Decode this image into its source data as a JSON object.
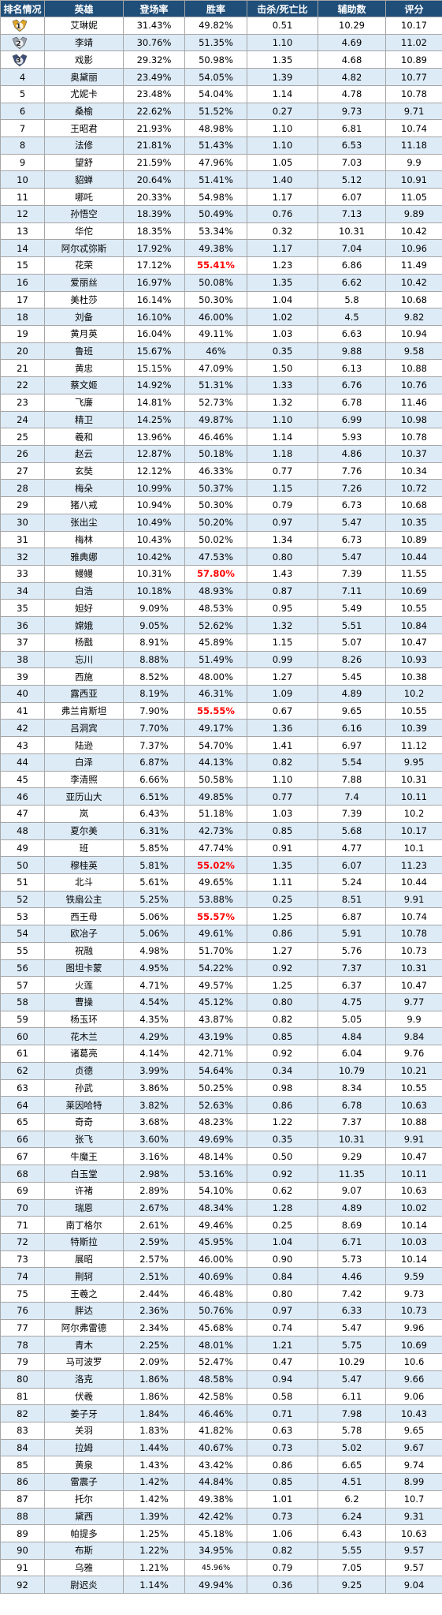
{
  "headers": [
    "排名情况",
    "英雄",
    "登场率",
    "胜率",
    "击杀/死亡比",
    "辅助数",
    "评分"
  ],
  "colors": {
    "header_bg": "#1f4e79",
    "stripe": "#ddebf7",
    "highlight": "#ff0000",
    "gold": "#e0a526",
    "silver": "#9aa3ad"
  },
  "rows": [
    {
      "rank": "1",
      "hero": "艾琳妮",
      "appear": "31.43%",
      "win": "49.82%",
      "kd": "0.51",
      "assist": "10.29",
      "score": "10.17",
      "medal": "gold"
    },
    {
      "rank": "2",
      "hero": "李靖",
      "appear": "30.76%",
      "win": "51.35%",
      "kd": "1.10",
      "assist": "4.69",
      "score": "11.02",
      "medal": "silver"
    },
    {
      "rank": "3",
      "hero": "戏影",
      "appear": "29.32%",
      "win": "50.98%",
      "kd": "1.35",
      "assist": "4.68",
      "score": "10.89",
      "medal": "bronze"
    },
    {
      "rank": "4",
      "hero": "奥黛丽",
      "appear": "23.49%",
      "win": "54.05%",
      "kd": "1.39",
      "assist": "4.82",
      "score": "10.77"
    },
    {
      "rank": "5",
      "hero": "尤妮卡",
      "appear": "23.48%",
      "win": "54.04%",
      "kd": "1.14",
      "assist": "4.78",
      "score": "10.78"
    },
    {
      "rank": "6",
      "hero": "桑榆",
      "appear": "22.62%",
      "win": "51.52%",
      "kd": "0.27",
      "assist": "9.73",
      "score": "9.71"
    },
    {
      "rank": "7",
      "hero": "王昭君",
      "appear": "21.93%",
      "win": "48.98%",
      "kd": "1.10",
      "assist": "6.81",
      "score": "10.74"
    },
    {
      "rank": "8",
      "hero": "法修",
      "appear": "21.81%",
      "win": "51.43%",
      "kd": "1.10",
      "assist": "6.53",
      "score": "11.18"
    },
    {
      "rank": "9",
      "hero": "望舒",
      "appear": "21.59%",
      "win": "47.96%",
      "kd": "1.05",
      "assist": "7.03",
      "score": "9.9"
    },
    {
      "rank": "10",
      "hero": "貂蝉",
      "appear": "20.64%",
      "win": "51.41%",
      "kd": "1.40",
      "assist": "5.12",
      "score": "10.91"
    },
    {
      "rank": "11",
      "hero": "哪吒",
      "appear": "20.33%",
      "win": "54.98%",
      "kd": "1.17",
      "assist": "6.07",
      "score": "11.05"
    },
    {
      "rank": "12",
      "hero": "孙悟空",
      "appear": "18.39%",
      "win": "50.49%",
      "kd": "0.76",
      "assist": "7.13",
      "score": "9.89"
    },
    {
      "rank": "13",
      "hero": "华佗",
      "appear": "18.35%",
      "win": "53.34%",
      "kd": "0.32",
      "assist": "10.31",
      "score": "10.42"
    },
    {
      "rank": "14",
      "hero": "阿尔忒弥斯",
      "appear": "17.92%",
      "win": "49.38%",
      "kd": "1.17",
      "assist": "7.04",
      "score": "10.96"
    },
    {
      "rank": "15",
      "hero": "花荣",
      "appear": "17.12%",
      "win": "55.41%",
      "kd": "1.23",
      "assist": "6.86",
      "score": "11.49",
      "hl": true
    },
    {
      "rank": "16",
      "hero": "爱丽丝",
      "appear": "16.97%",
      "win": "50.08%",
      "kd": "1.35",
      "assist": "6.62",
      "score": "10.42"
    },
    {
      "rank": "17",
      "hero": "美杜莎",
      "appear": "16.14%",
      "win": "50.30%",
      "kd": "1.04",
      "assist": "5.8",
      "score": "10.68"
    },
    {
      "rank": "18",
      "hero": "刘备",
      "appear": "16.10%",
      "win": "46.00%",
      "kd": "1.02",
      "assist": "4.5",
      "score": "9.82"
    },
    {
      "rank": "19",
      "hero": "黄月英",
      "appear": "16.04%",
      "win": "49.11%",
      "kd": "1.03",
      "assist": "6.63",
      "score": "10.94"
    },
    {
      "rank": "20",
      "hero": "鲁班",
      "appear": "15.67%",
      "win": "46%",
      "kd": "0.35",
      "assist": "9.88",
      "score": "9.58"
    },
    {
      "rank": "21",
      "hero": "黄忠",
      "appear": "15.15%",
      "win": "47.09%",
      "kd": "1.50",
      "assist": "6.13",
      "score": "10.88"
    },
    {
      "rank": "22",
      "hero": "蔡文姬",
      "appear": "14.92%",
      "win": "51.31%",
      "kd": "1.33",
      "assist": "6.76",
      "score": "10.76"
    },
    {
      "rank": "23",
      "hero": "飞廉",
      "appear": "14.81%",
      "win": "52.73%",
      "kd": "1.32",
      "assist": "6.78",
      "score": "11.46"
    },
    {
      "rank": "24",
      "hero": "精卫",
      "appear": "14.25%",
      "win": "49.87%",
      "kd": "1.10",
      "assist": "6.99",
      "score": "10.98"
    },
    {
      "rank": "25",
      "hero": "羲和",
      "appear": "13.96%",
      "win": "46.46%",
      "kd": "1.14",
      "assist": "5.93",
      "score": "10.78"
    },
    {
      "rank": "26",
      "hero": "赵云",
      "appear": "12.87%",
      "win": "50.18%",
      "kd": "1.18",
      "assist": "4.86",
      "score": "10.37"
    },
    {
      "rank": "27",
      "hero": "玄奘",
      "appear": "12.12%",
      "win": "46.33%",
      "kd": "0.77",
      "assist": "7.76",
      "score": "10.34"
    },
    {
      "rank": "28",
      "hero": "梅朵",
      "appear": "10.99%",
      "win": "50.37%",
      "kd": "1.15",
      "assist": "7.26",
      "score": "10.72"
    },
    {
      "rank": "29",
      "hero": "猪八戒",
      "appear": "10.94%",
      "win": "50.30%",
      "kd": "0.79",
      "assist": "6.73",
      "score": "10.68"
    },
    {
      "rank": "30",
      "hero": "张出尘",
      "appear": "10.49%",
      "win": "50.20%",
      "kd": "0.97",
      "assist": "5.47",
      "score": "10.35"
    },
    {
      "rank": "31",
      "hero": "梅林",
      "appear": "10.43%",
      "win": "50.02%",
      "kd": "1.34",
      "assist": "6.73",
      "score": "10.89"
    },
    {
      "rank": "32",
      "hero": "雅典娜",
      "appear": "10.42%",
      "win": "47.53%",
      "kd": "0.80",
      "assist": "5.47",
      "score": "10.44"
    },
    {
      "rank": "33",
      "hero": "鳗鳗",
      "appear": "10.31%",
      "win": "57.80%",
      "kd": "1.43",
      "assist": "7.39",
      "score": "11.55",
      "hl": true
    },
    {
      "rank": "34",
      "hero": "白浩",
      "appear": "10.18%",
      "win": "48.93%",
      "kd": "0.87",
      "assist": "7.11",
      "score": "10.69"
    },
    {
      "rank": "35",
      "hero": "妲好",
      "appear": "9.09%",
      "win": "48.53%",
      "kd": "0.95",
      "assist": "5.49",
      "score": "10.55"
    },
    {
      "rank": "36",
      "hero": "嫦娥",
      "appear": "9.05%",
      "win": "52.62%",
      "kd": "1.32",
      "assist": "5.51",
      "score": "10.84"
    },
    {
      "rank": "37",
      "hero": "杨戬",
      "appear": "8.91%",
      "win": "45.89%",
      "kd": "1.15",
      "assist": "5.07",
      "score": "10.47"
    },
    {
      "rank": "38",
      "hero": "忘川",
      "appear": "8.88%",
      "win": "51.49%",
      "kd": "0.99",
      "assist": "8.26",
      "score": "10.93"
    },
    {
      "rank": "39",
      "hero": "西施",
      "appear": "8.52%",
      "win": "48.00%",
      "kd": "1.27",
      "assist": "5.45",
      "score": "10.38"
    },
    {
      "rank": "40",
      "hero": "露西亚",
      "appear": "8.19%",
      "win": "46.31%",
      "kd": "1.09",
      "assist": "4.89",
      "score": "10.2"
    },
    {
      "rank": "41",
      "hero": "弗兰肯斯坦",
      "appear": "7.90%",
      "win": "55.55%",
      "kd": "0.67",
      "assist": "9.65",
      "score": "10.55",
      "hl": true
    },
    {
      "rank": "42",
      "hero": "吕洞宾",
      "appear": "7.70%",
      "win": "49.17%",
      "kd": "1.36",
      "assist": "6.16",
      "score": "10.39"
    },
    {
      "rank": "43",
      "hero": "陆逊",
      "appear": "7.37%",
      "win": "54.70%",
      "kd": "1.41",
      "assist": "6.97",
      "score": "11.12"
    },
    {
      "rank": "44",
      "hero": "白泽",
      "appear": "6.87%",
      "win": "44.13%",
      "kd": "0.82",
      "assist": "5.54",
      "score": "9.95"
    },
    {
      "rank": "45",
      "hero": "李清照",
      "appear": "6.66%",
      "win": "50.58%",
      "kd": "1.10",
      "assist": "7.88",
      "score": "10.31"
    },
    {
      "rank": "46",
      "hero": "亚历山大",
      "appear": "6.51%",
      "win": "49.85%",
      "kd": "0.77",
      "assist": "7.4",
      "score": "10.11"
    },
    {
      "rank": "47",
      "hero": "岚",
      "appear": "6.43%",
      "win": "51.18%",
      "kd": "1.03",
      "assist": "7.39",
      "score": "10.2"
    },
    {
      "rank": "48",
      "hero": "夏尔美",
      "appear": "6.31%",
      "win": "42.73%",
      "kd": "0.85",
      "assist": "5.68",
      "score": "10.17"
    },
    {
      "rank": "49",
      "hero": "班",
      "appear": "5.85%",
      "win": "47.74%",
      "kd": "0.91",
      "assist": "4.77",
      "score": "10.1"
    },
    {
      "rank": "50",
      "hero": "穆桂英",
      "appear": "5.81%",
      "win": "55.02%",
      "kd": "1.35",
      "assist": "6.07",
      "score": "11.23",
      "hl": true
    },
    {
      "rank": "51",
      "hero": "北斗",
      "appear": "5.61%",
      "win": "49.65%",
      "kd": "1.11",
      "assist": "5.24",
      "score": "10.44"
    },
    {
      "rank": "52",
      "hero": "铁扇公主",
      "appear": "5.25%",
      "win": "53.88%",
      "kd": "0.25",
      "assist": "8.51",
      "score": "9.91"
    },
    {
      "rank": "53",
      "hero": "西王母",
      "appear": "5.06%",
      "win": "55.57%",
      "kd": "1.25",
      "assist": "6.87",
      "score": "10.74",
      "hl": true
    },
    {
      "rank": "54",
      "hero": "欧冶子",
      "appear": "5.06%",
      "win": "49.61%",
      "kd": "0.86",
      "assist": "5.91",
      "score": "10.78"
    },
    {
      "rank": "55",
      "hero": "祝融",
      "appear": "4.98%",
      "win": "51.70%",
      "kd": "1.27",
      "assist": "5.76",
      "score": "10.73"
    },
    {
      "rank": "56",
      "hero": "图坦卡蒙",
      "appear": "4.95%",
      "win": "54.22%",
      "kd": "0.92",
      "assist": "7.37",
      "score": "10.31"
    },
    {
      "rank": "57",
      "hero": "火莲",
      "appear": "4.71%",
      "win": "49.57%",
      "kd": "1.25",
      "assist": "6.37",
      "score": "10.47"
    },
    {
      "rank": "58",
      "hero": "曹操",
      "appear": "4.54%",
      "win": "45.12%",
      "kd": "0.80",
      "assist": "4.75",
      "score": "9.77"
    },
    {
      "rank": "59",
      "hero": "杨玉环",
      "appear": "4.35%",
      "win": "43.87%",
      "kd": "0.82",
      "assist": "5.05",
      "score": "9.9"
    },
    {
      "rank": "60",
      "hero": "花木兰",
      "appear": "4.29%",
      "win": "43.19%",
      "kd": "0.85",
      "assist": "4.84",
      "score": "9.84"
    },
    {
      "rank": "61",
      "hero": "诸葛亮",
      "appear": "4.14%",
      "win": "42.71%",
      "kd": "0.92",
      "assist": "6.04",
      "score": "9.76"
    },
    {
      "rank": "62",
      "hero": "贞德",
      "appear": "3.99%",
      "win": "54.64%",
      "kd": "0.34",
      "assist": "10.79",
      "score": "10.21"
    },
    {
      "rank": "63",
      "hero": "孙武",
      "appear": "3.86%",
      "win": "50.25%",
      "kd": "0.98",
      "assist": "8.34",
      "score": "10.55"
    },
    {
      "rank": "64",
      "hero": "莱因哈特",
      "appear": "3.82%",
      "win": "52.63%",
      "kd": "0.86",
      "assist": "6.78",
      "score": "10.63"
    },
    {
      "rank": "65",
      "hero": "奇奇",
      "appear": "3.68%",
      "win": "48.23%",
      "kd": "1.22",
      "assist": "7.37",
      "score": "10.88"
    },
    {
      "rank": "66",
      "hero": "张飞",
      "appear": "3.60%",
      "win": "49.69%",
      "kd": "0.35",
      "assist": "10.31",
      "score": "9.91"
    },
    {
      "rank": "67",
      "hero": "牛魔王",
      "appear": "3.16%",
      "win": "48.14%",
      "kd": "0.50",
      "assist": "9.29",
      "score": "10.47"
    },
    {
      "rank": "68",
      "hero": "白玉堂",
      "appear": "2.98%",
      "win": "53.16%",
      "kd": "0.92",
      "assist": "11.35",
      "score": "10.11"
    },
    {
      "rank": "69",
      "hero": "许褚",
      "appear": "2.89%",
      "win": "54.10%",
      "kd": "0.62",
      "assist": "9.07",
      "score": "10.63"
    },
    {
      "rank": "70",
      "hero": "瑞恩",
      "appear": "2.67%",
      "win": "48.34%",
      "kd": "1.28",
      "assist": "4.89",
      "score": "10.02"
    },
    {
      "rank": "71",
      "hero": "南丁格尔",
      "appear": "2.61%",
      "win": "49.46%",
      "kd": "0.25",
      "assist": "8.69",
      "score": "10.14"
    },
    {
      "rank": "72",
      "hero": "特斯拉",
      "appear": "2.59%",
      "win": "45.95%",
      "kd": "1.04",
      "assist": "6.71",
      "score": "10.03"
    },
    {
      "rank": "73",
      "hero": "展昭",
      "appear": "2.57%",
      "win": "46.00%",
      "kd": "0.90",
      "assist": "5.73",
      "score": "10.14"
    },
    {
      "rank": "74",
      "hero": "荆轲",
      "appear": "2.51%",
      "win": "40.69%",
      "kd": "0.84",
      "assist": "4.46",
      "score": "9.59"
    },
    {
      "rank": "75",
      "hero": "王羲之",
      "appear": "2.44%",
      "win": "46.48%",
      "kd": "0.80",
      "assist": "7.42",
      "score": "9.73"
    },
    {
      "rank": "76",
      "hero": "胖达",
      "appear": "2.36%",
      "win": "50.76%",
      "kd": "0.97",
      "assist": "6.33",
      "score": "10.73"
    },
    {
      "rank": "77",
      "hero": "阿尔弗雷德",
      "appear": "2.34%",
      "win": "45.68%",
      "kd": "0.74",
      "assist": "5.47",
      "score": "9.96"
    },
    {
      "rank": "78",
      "hero": "青木",
      "appear": "2.25%",
      "win": "48.01%",
      "kd": "1.21",
      "assist": "5.75",
      "score": "10.69"
    },
    {
      "rank": "79",
      "hero": "马可波罗",
      "appear": "2.09%",
      "win": "52.47%",
      "kd": "0.47",
      "assist": "10.29",
      "score": "10.6"
    },
    {
      "rank": "80",
      "hero": "洛克",
      "appear": "1.86%",
      "win": "48.58%",
      "kd": "0.94",
      "assist": "5.47",
      "score": "9.66"
    },
    {
      "rank": "81",
      "hero": "伏羲",
      "appear": "1.86%",
      "win": "42.58%",
      "kd": "0.58",
      "assist": "6.11",
      "score": "9.06"
    },
    {
      "rank": "82",
      "hero": "姜子牙",
      "appear": "1.84%",
      "win": "46.46%",
      "kd": "0.71",
      "assist": "7.98",
      "score": "10.43"
    },
    {
      "rank": "83",
      "hero": "关羽",
      "appear": "1.83%",
      "win": "41.82%",
      "kd": "0.63",
      "assist": "5.78",
      "score": "9.65"
    },
    {
      "rank": "84",
      "hero": "拉姆",
      "appear": "1.44%",
      "win": "40.67%",
      "kd": "0.73",
      "assist": "5.02",
      "score": "9.67"
    },
    {
      "rank": "85",
      "hero": "黄泉",
      "appear": "1.43%",
      "win": "43.42%",
      "kd": "0.86",
      "assist": "6.65",
      "score": "9.74"
    },
    {
      "rank": "86",
      "hero": "雷震子",
      "appear": "1.42%",
      "win": "44.84%",
      "kd": "0.85",
      "assist": "4.51",
      "score": "8.99"
    },
    {
      "rank": "87",
      "hero": "托尔",
      "appear": "1.42%",
      "win": "49.38%",
      "kd": "1.01",
      "assist": "6.2",
      "score": "10.7"
    },
    {
      "rank": "88",
      "hero": "黛西",
      "appear": "1.39%",
      "win": "42.42%",
      "kd": "0.73",
      "assist": "6.24",
      "score": "9.31"
    },
    {
      "rank": "89",
      "hero": "帕提多",
      "appear": "1.25%",
      "win": "45.18%",
      "kd": "1.06",
      "assist": "6.43",
      "score": "10.63"
    },
    {
      "rank": "90",
      "hero": "布斯",
      "appear": "1.22%",
      "win": "34.95%",
      "kd": "0.82",
      "assist": "5.55",
      "score": "9.57"
    },
    {
      "rank": "91",
      "hero": "乌雅",
      "appear": "1.21%",
      "win": "45.96%",
      "kd": "0.79",
      "assist": "7.05",
      "score": "9.57",
      "small": true
    },
    {
      "rank": "92",
      "hero": "尉迟炎",
      "appear": "1.14%",
      "win": "49.94%",
      "kd": "0.36",
      "assist": "9.25",
      "score": "9.04"
    }
  ]
}
